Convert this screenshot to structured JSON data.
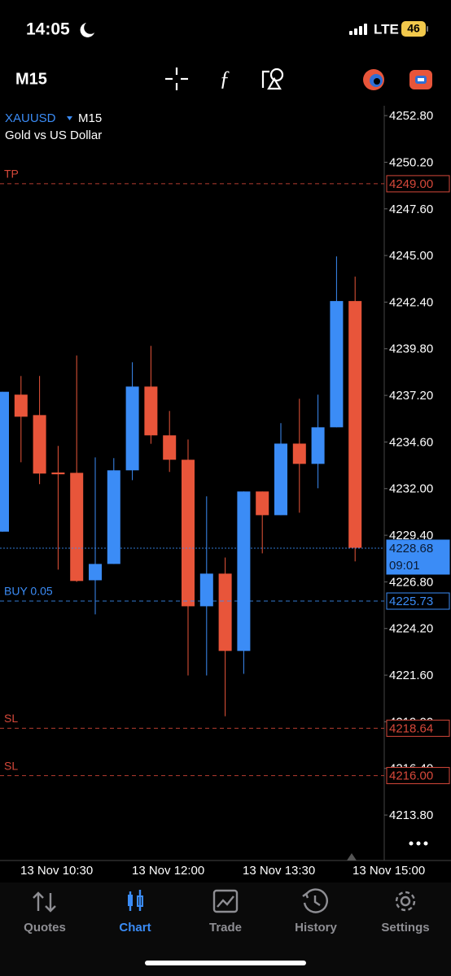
{
  "status_bar": {
    "time": "14:05",
    "network": "LTE",
    "battery": "46"
  },
  "toolbar": {
    "timeframe": "M15"
  },
  "chart_data": {
    "type": "candlestick",
    "symbol": "XAUUSD",
    "timeframe": "M15",
    "description": "Gold vs US Dollar",
    "up_color": "#3b8cf6",
    "down_color": "#e8553a",
    "ylim": [
      4211.4,
      4253.35
    ],
    "yticks": [
      {
        "value": 4252.8,
        "label": "4252.80"
      },
      {
        "value": 4250.2,
        "label": "4250.20"
      },
      {
        "value": 4247.6,
        "label": "4247.60"
      },
      {
        "value": 4245.0,
        "label": "4245.00"
      },
      {
        "value": 4242.4,
        "label": "4242.40"
      },
      {
        "value": 4239.8,
        "label": "4239.80"
      },
      {
        "value": 4237.2,
        "label": "4237.20"
      },
      {
        "value": 4234.6,
        "label": "4234.60"
      },
      {
        "value": 4232.0,
        "label": "4232.00"
      },
      {
        "value": 4229.4,
        "label": "4229.40"
      },
      {
        "value": 4226.8,
        "label": "4226.80"
      },
      {
        "value": 4224.2,
        "label": "4224.20"
      },
      {
        "value": 4221.6,
        "label": "4221.60"
      },
      {
        "value": 4219.0,
        "label": "4219.00"
      },
      {
        "value": 4216.4,
        "label": "4216.40"
      },
      {
        "value": 4213.8,
        "label": "4213.80"
      }
    ],
    "xtick_labels": [
      "13 Nov 10:30",
      "13 Nov 12:00",
      "13 Nov 13:30",
      "13 Nov 15:00"
    ],
    "candles": [
      {
        "open": 4229.6,
        "high": 4237.4,
        "low": 4229.6,
        "close": 4237.4
      },
      {
        "open": 4237.24,
        "high": 4238.28,
        "low": 4233.47,
        "close": 4236.01
      },
      {
        "open": 4236.1,
        "high": 4238.28,
        "low": 4232.25,
        "close": 4232.84
      },
      {
        "open": 4232.9,
        "high": 4234.38,
        "low": 4227.48,
        "close": 4232.8
      },
      {
        "open": 4232.88,
        "high": 4239.42,
        "low": 4226.8,
        "close": 4226.85
      },
      {
        "open": 4226.89,
        "high": 4233.74,
        "low": 4224.99,
        "close": 4227.8
      },
      {
        "open": 4227.8,
        "high": 4233.7,
        "low": 4227.8,
        "close": 4233.02
      },
      {
        "open": 4233.02,
        "high": 4239.05,
        "low": 4232.47,
        "close": 4237.69
      },
      {
        "open": 4237.69,
        "high": 4239.96,
        "low": 4234.5,
        "close": 4234.97
      },
      {
        "open": 4234.97,
        "high": 4236.33,
        "low": 4232.93,
        "close": 4233.61
      },
      {
        "open": 4233.61,
        "high": 4234.74,
        "low": 4221.58,
        "close": 4225.44
      },
      {
        "open": 4225.44,
        "high": 4231.57,
        "low": 4221.58,
        "close": 4227.26
      },
      {
        "open": 4227.26,
        "high": 4228.16,
        "low": 4219.31,
        "close": 4222.95
      },
      {
        "open": 4222.95,
        "high": 4231.84,
        "low": 4221.67,
        "close": 4231.84
      },
      {
        "open": 4231.84,
        "high": 4231.84,
        "low": 4228.39,
        "close": 4230.52
      },
      {
        "open": 4230.52,
        "high": 4235.65,
        "low": 4230.52,
        "close": 4234.51
      },
      {
        "open": 4234.51,
        "high": 4237.01,
        "low": 4230.66,
        "close": 4233.38
      },
      {
        "open": 4233.38,
        "high": 4237.24,
        "low": 4232.02,
        "close": 4235.42
      },
      {
        "open": 4235.42,
        "high": 4244.95,
        "low": 4235.42,
        "close": 4242.46
      },
      {
        "open": 4242.46,
        "high": 4243.82,
        "low": 4227.94,
        "close": 4228.7
      }
    ],
    "price_lines": [
      {
        "label": "TP",
        "value": 4249.0,
        "value_label": "4249.00",
        "color": "#d6483a",
        "style": "dashed",
        "box": "outline"
      },
      {
        "value": 4228.68,
        "value_label": "4228.68",
        "countdown": "09:01",
        "color": "#3b8cf6",
        "style": "dotted",
        "box": "filled"
      },
      {
        "label": "BUY 0.05",
        "value": 4225.73,
        "value_label": "4225.73",
        "color": "#3b8cf6",
        "style": "dashed",
        "box": "outline"
      },
      {
        "label": "SL",
        "value": 4218.64,
        "value_label": "4218.64",
        "color": "#d6483a",
        "style": "dashed",
        "box": "outline"
      },
      {
        "label": "SL",
        "value": 4216.0,
        "value_label": "4216.00",
        "color": "#d6483a",
        "style": "dashed",
        "box": "outline"
      }
    ]
  },
  "tabs": [
    {
      "label": "Quotes",
      "color": "#8e8e93"
    },
    {
      "label": "Chart",
      "color": "#3b8cf6"
    },
    {
      "label": "Trade",
      "color": "#8e8e93"
    },
    {
      "label": "History",
      "color": "#8e8e93"
    },
    {
      "label": "Settings",
      "color": "#8e8e93"
    }
  ]
}
